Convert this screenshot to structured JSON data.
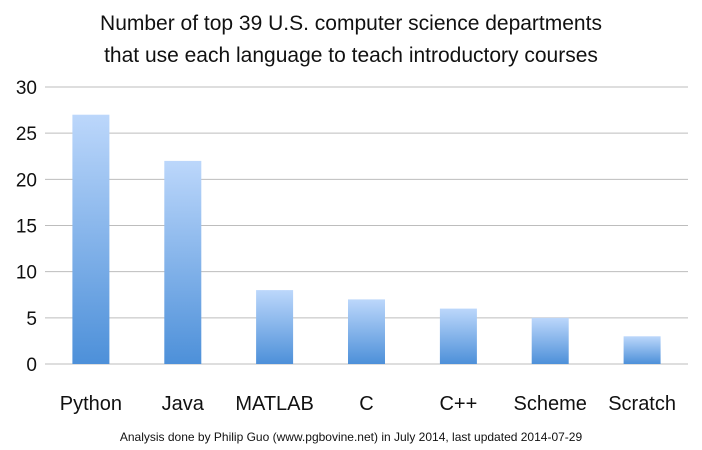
{
  "chart_data": {
    "type": "bar",
    "title": "Number of top 39 U.S. computer science departments that use each language to teach introductory courses",
    "title_lines": [
      "Number of top 39 U.S. computer science departments",
      "that use each language to teach introductory courses"
    ],
    "categories": [
      "Python",
      "Java",
      "MATLAB",
      "C",
      "C++",
      "Scheme",
      "Scratch"
    ],
    "values": [
      27,
      22,
      8,
      7,
      6,
      5,
      3
    ],
    "xlabel": "",
    "ylabel": "",
    "ylim": [
      0,
      30
    ],
    "yticks": [
      "0",
      "5",
      "10",
      "15",
      "20",
      "25",
      "30"
    ],
    "grid": true,
    "legend": "none",
    "bar_color_top": "#bcd7fb",
    "bar_color_bottom": "#4d90d9",
    "footnote": "Analysis done by Philip Guo (www.pgbovine.net) in July 2014, last updated 2014-07-29"
  }
}
